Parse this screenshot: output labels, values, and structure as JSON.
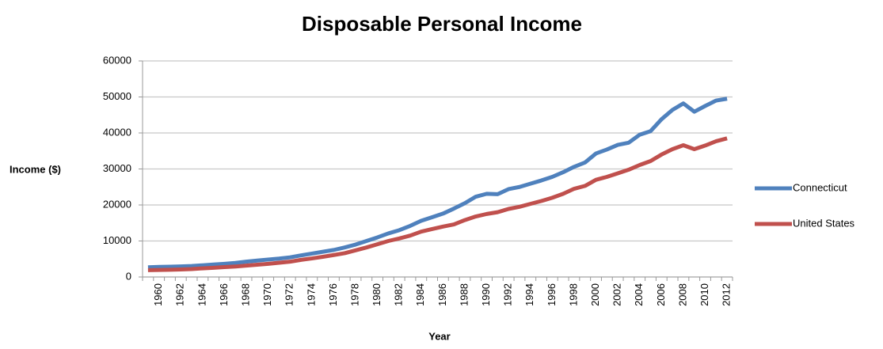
{
  "chart_data": {
    "type": "line",
    "title": "Disposable Personal Income",
    "x_label": "Year",
    "y_label": "Income ($)",
    "categories": [
      null,
      "1960",
      null,
      "1962",
      null,
      "1964",
      null,
      "1966",
      null,
      "1968",
      null,
      "1970",
      null,
      "1972",
      null,
      "1974",
      null,
      "1976",
      null,
      "1978",
      null,
      "1980",
      null,
      "1982",
      null,
      "1984",
      null,
      "1986",
      null,
      "1988",
      null,
      "1990",
      null,
      "1992",
      null,
      "1994",
      null,
      "1996",
      null,
      "1998",
      null,
      "2000",
      null,
      "2002",
      null,
      "2004",
      null,
      "2006",
      null,
      "2008",
      null,
      "2010",
      null,
      "2012"
    ],
    "series": [
      {
        "name": "Connecticut",
        "color": "#4f81bd",
        "values": [
          2700,
          2800,
          2850,
          2950,
          3050,
          3250,
          3450,
          3650,
          3900,
          4250,
          4550,
          4850,
          5100,
          5450,
          6000,
          6500,
          7000,
          7500,
          8200,
          9000,
          10000,
          11000,
          12100,
          13000,
          14200,
          15600,
          16600,
          17600,
          19000,
          20500,
          22300,
          23100,
          23000,
          24400,
          25000,
          25900,
          26800,
          27800,
          29100,
          30600,
          31800,
          34300,
          35400,
          36700,
          37300,
          39500,
          40500,
          43800,
          46400,
          48200,
          45900,
          47500,
          49000,
          49500
        ]
      },
      {
        "name": "United States",
        "color": "#c0504d",
        "values": [
          1900,
          1950,
          2000,
          2100,
          2200,
          2400,
          2550,
          2750,
          2900,
          3150,
          3400,
          3650,
          3950,
          4250,
          4750,
          5150,
          5600,
          6100,
          6600,
          7400,
          8200,
          9100,
          10000,
          10700,
          11500,
          12600,
          13300,
          14000,
          14600,
          15800,
          16800,
          17500,
          18000,
          18900,
          19500,
          20300,
          21100,
          22000,
          23100,
          24500,
          25300,
          27000,
          27800,
          28800,
          29800,
          31100,
          32200,
          34000,
          35500,
          36600,
          35500,
          36500,
          37700,
          38500
        ]
      }
    ],
    "ylim": [
      0,
      60000
    ],
    "yticks": [
      0,
      10000,
      20000,
      30000,
      40000,
      50000,
      60000
    ],
    "grid": true,
    "legend": "right"
  }
}
